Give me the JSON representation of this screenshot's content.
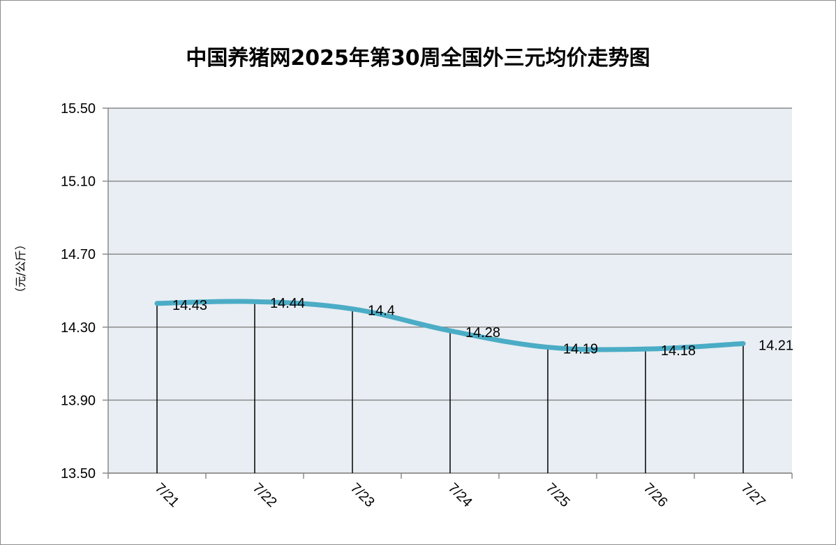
{
  "chart_data": {
    "type": "line",
    "title": "中国养猪网2025年第30周全国外三元均价走势图",
    "ylabel": "（元/公斤）",
    "xlabel": "",
    "categories": [
      "7/21",
      "7/22",
      "7/23",
      "7/24",
      "7/25",
      "7/26",
      "7/27"
    ],
    "series": [
      {
        "values": [
          14.43,
          14.44,
          14.4,
          14.28,
          14.19,
          14.18,
          14.21
        ]
      }
    ],
    "data_labels": [
      "14.43",
      "14.44",
      "14.4",
      "14.28",
      "14.19",
      "14.18",
      "14.21"
    ],
    "ylim": [
      13.5,
      15.5
    ],
    "yticks": [
      "15.50",
      "15.10",
      "14.70",
      "14.30",
      "13.90",
      "13.50"
    ],
    "grid": true,
    "drop_lines": true,
    "line_color": "#4BACC6",
    "plot_background": "#E8EEF3"
  }
}
